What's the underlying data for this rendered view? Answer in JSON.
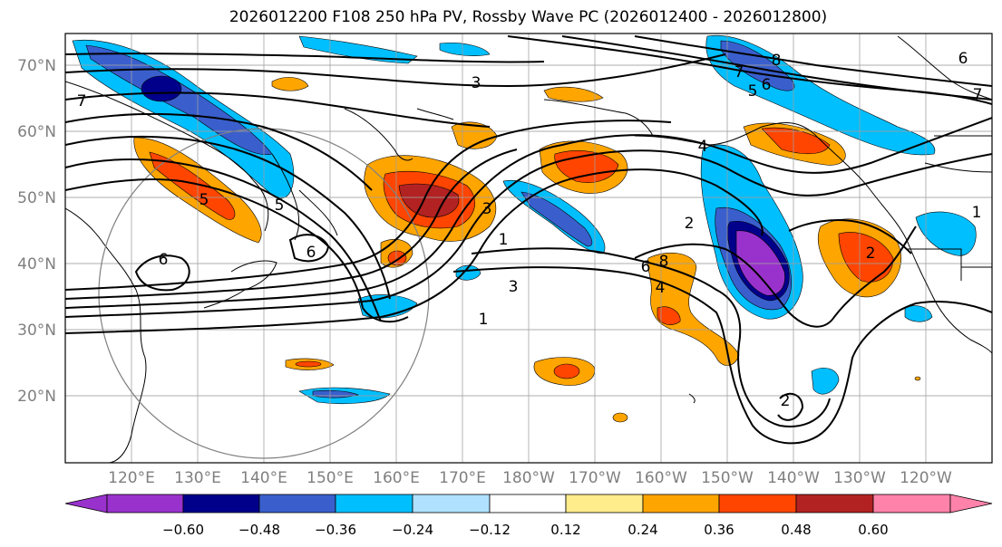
{
  "title": "2026012200 F108 250 hPa PV, Rossby Wave PC (2026012400 - 2026012800)",
  "map": {
    "lat_labels": [
      "70°N",
      "60°N",
      "50°N",
      "40°N",
      "30°N",
      "20°N"
    ],
    "lon_labels": [
      "120°E",
      "130°E",
      "140°E",
      "150°E",
      "160°E",
      "170°E",
      "180°W",
      "170°W",
      "160°W",
      "150°W",
      "140°W",
      "130°W",
      "120°W"
    ],
    "label_color": "#7f7f7f",
    "contour_labels": [
      "7",
      "3",
      "5",
      "6",
      "8",
      "6",
      "7",
      "7",
      "4",
      "3",
      "1",
      "3",
      "1",
      "6",
      "6",
      "5",
      "5",
      "2",
      "8",
      "6",
      "4",
      "2",
      "2",
      "1"
    ]
  },
  "colorbar": {
    "colors": [
      "#9932cc",
      "#00008b",
      "#3a5fcd",
      "#00bfff",
      "#b0e2ff",
      "#ffffff",
      "#ffec8b",
      "#ffa500",
      "#ff4500",
      "#b22222",
      "#ff82ab"
    ],
    "ticks": [
      "−0.60",
      "−0.48",
      "−0.36",
      "−0.24",
      "−0.12",
      "0.12",
      "0.24",
      "0.36",
      "0.48",
      "0.60"
    ]
  }
}
